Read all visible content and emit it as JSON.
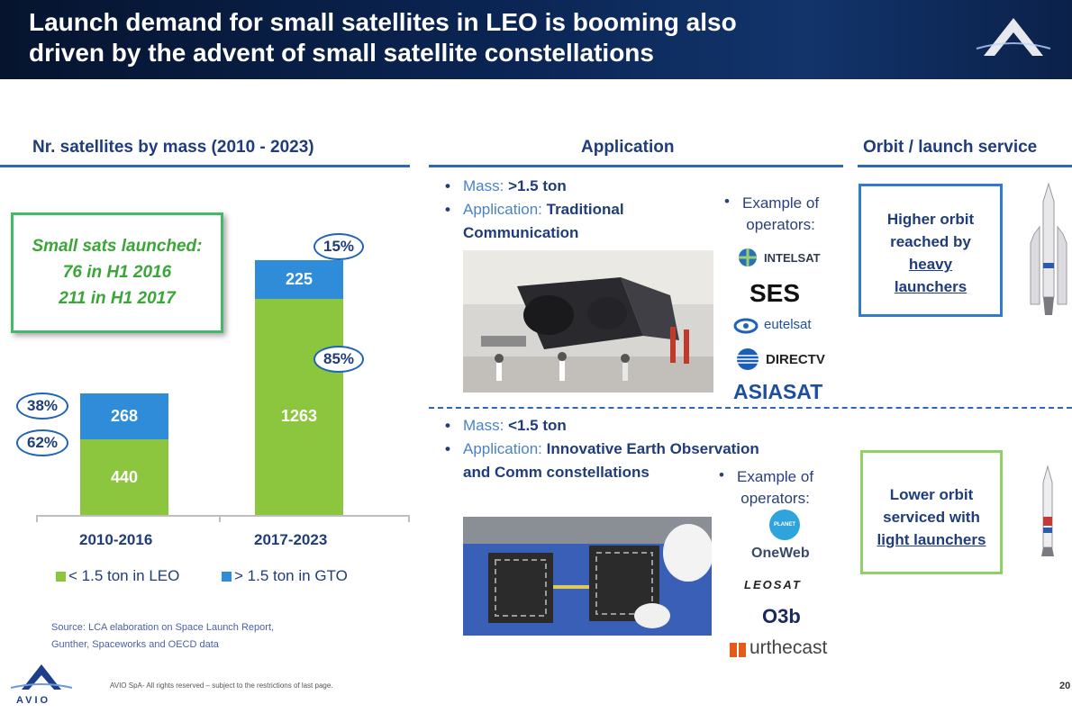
{
  "header": {
    "title_line1": "Launch demand for small satellites in LEO is booming also",
    "title_line2": "driven by the advent of small satellite constellations"
  },
  "sections": {
    "left": "Nr. satellites by mass (2010 - 2023)",
    "middle": "Application",
    "right": "Orbit / launch service"
  },
  "callout": {
    "line1": "Small sats launched:",
    "line2": "76 in H1 2016",
    "line3": "211 in H1 2017"
  },
  "chart_data": {
    "type": "bar",
    "stacked": true,
    "title": "Nr. satellites by mass (2010 - 2023)",
    "categories": [
      "2010-2016",
      "2017-2023"
    ],
    "series": [
      {
        "name": "< 1.5 ton in LEO",
        "values": [
          440,
          1263
        ],
        "percent_labels": [
          "62%",
          "85%"
        ],
        "color": "#8cc63e"
      },
      {
        "name": "> 1.5 ton in GTO",
        "values": [
          268,
          225
        ],
        "percent_labels": [
          "38%",
          "15%"
        ],
        "color": "#2e8cd8"
      }
    ],
    "ylim": [
      0,
      1600
    ]
  },
  "legend": {
    "leo": "< 1.5 ton in LEO",
    "gto": "> 1.5 ton in GTO"
  },
  "source": "Source: LCA elaboration on Space Launch Report,\nGunther, Spaceworks and OECD data",
  "top_app": {
    "mass_key": "Mass:",
    "mass_val": ">1.5 ton",
    "app_key": "Application:",
    "app_val": "Traditional",
    "app_val2": "Communication",
    "example_bullet": "•",
    "example": "Example of\noperators:",
    "operators": [
      "INTELSAT",
      "SES",
      "eutelsat",
      "DIRECTV",
      "ASIASAT"
    ]
  },
  "bottom_app": {
    "mass_key": "Mass:",
    "mass_val": "<1.5 ton",
    "app_key": "Application:",
    "app_val": "Innovative Earth Observation",
    "app_val2": "and Comm  constellations",
    "example_bullet": "•",
    "example": "Example of\noperators:",
    "operators": [
      "PLANET",
      "OneWeb",
      "LEOSAT",
      "O3b",
      "urthecast"
    ]
  },
  "orbit_top": {
    "line1": "Higher orbit",
    "line2": "reached by",
    "line3": "heavy",
    "line4": "launchers"
  },
  "orbit_bottom": {
    "line1": "Lower orbit",
    "line2": "serviced with",
    "line3": "light launchers"
  },
  "footer": {
    "brand": "AVIO",
    "text": "AVIO SpA- All rights reserved – subject to the restrictions of  last page.",
    "page": "20"
  },
  "colors": {
    "leo": "#8cc63e",
    "gto": "#2e8cd8",
    "heading": "#1f3d7a",
    "rule": "#2f67b8",
    "callout_green": "#3aa638"
  }
}
